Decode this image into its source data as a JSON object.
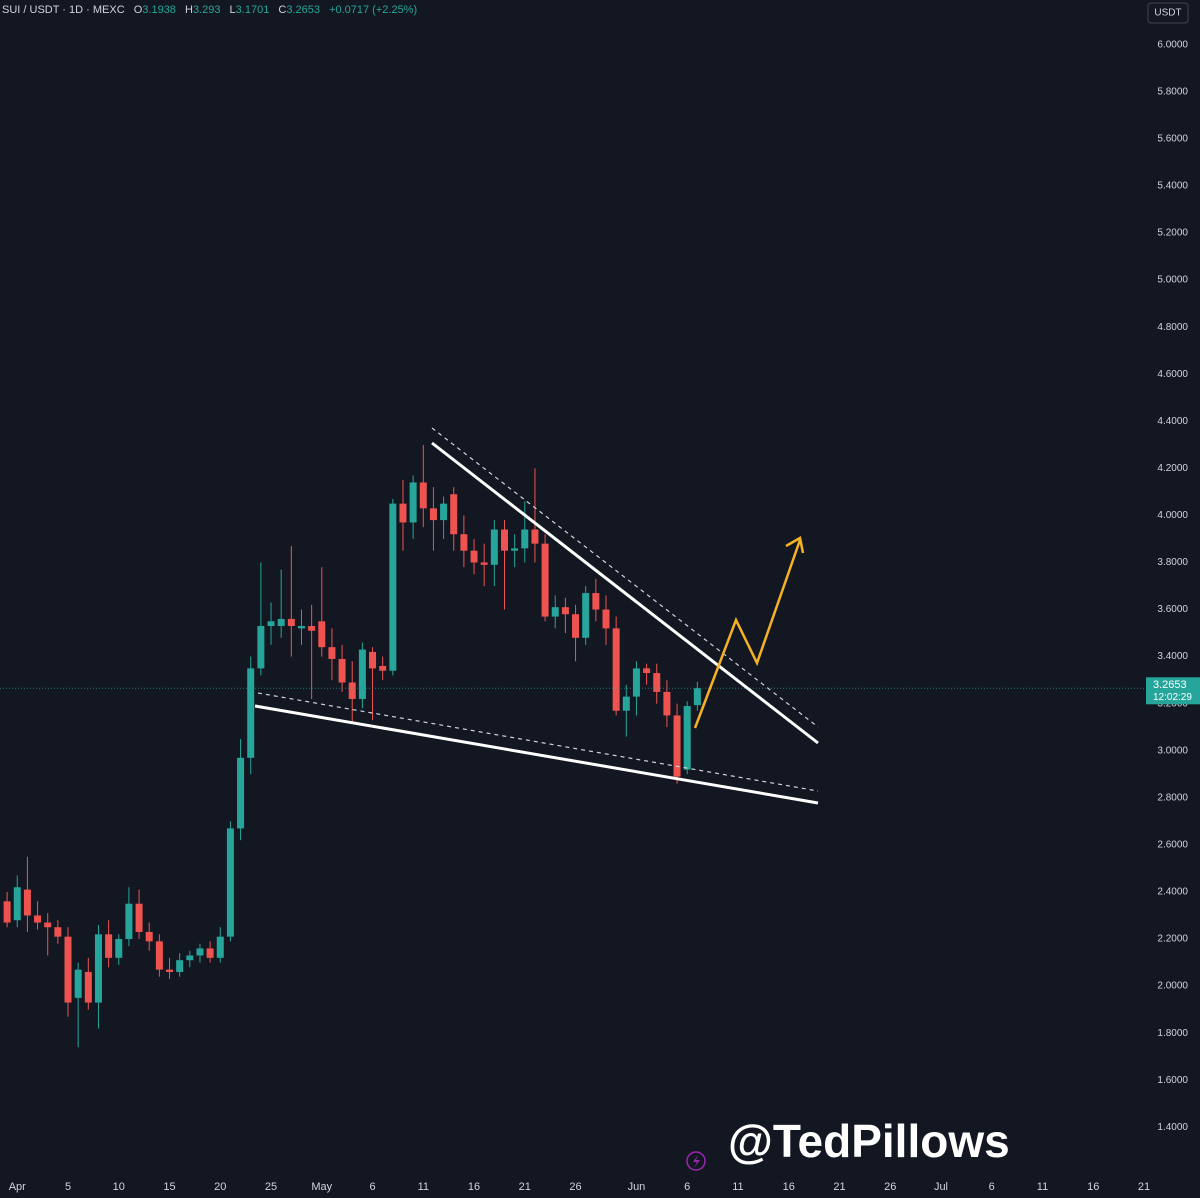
{
  "header": {
    "symbol": "SUI / USDT · 1D · MEXC",
    "o": "O",
    "h": "H",
    "l": "L",
    "c": "C",
    "change": "+0.0717 (+2.25%)",
    "currency": "USDT",
    "countdown": "12:02:29",
    "watermark": "@TedPillows"
  },
  "chart_data": {
    "type": "candlestick",
    "up_color": "#26a69a",
    "down_color": "#ef5350",
    "x": [
      -1,
      0,
      1,
      2,
      3,
      4,
      5,
      6,
      7,
      8,
      9,
      10,
      11,
      12,
      13,
      14,
      15,
      16,
      17,
      18,
      19,
      20,
      21,
      22,
      23,
      24,
      25,
      26,
      27,
      28,
      29,
      30,
      31,
      32,
      33,
      34,
      35,
      36,
      37,
      38,
      39,
      40,
      41,
      42,
      43,
      44,
      45,
      46,
      47,
      48,
      49,
      50,
      51,
      52,
      53,
      54,
      55,
      56,
      57,
      58,
      59,
      60,
      61,
      62,
      63,
      64,
      65,
      66,
      67
    ],
    "open": [
      2.36,
      2.28,
      2.41,
      2.3,
      2.27,
      2.25,
      2.21,
      1.95,
      2.06,
      1.93,
      2.22,
      2.12,
      2.2,
      2.35,
      2.23,
      2.19,
      2.07,
      2.06,
      2.11,
      2.13,
      2.16,
      2.12,
      2.21,
      2.67,
      2.97,
      3.35,
      3.53,
      3.53,
      3.56,
      3.52,
      3.53,
      3.55,
      3.44,
      3.39,
      3.29,
      3.22,
      3.42,
      3.36,
      3.34,
      4.05,
      3.97,
      4.14,
      4.03,
      3.98,
      4.09,
      3.92,
      3.85,
      3.8,
      3.79,
      3.94,
      3.85,
      3.86,
      3.94,
      3.88,
      3.57,
      3.61,
      3.58,
      3.48,
      3.67,
      3.6,
      3.52,
      3.17,
      3.23,
      3.35,
      3.33,
      3.25,
      3.15,
      2.92,
      3.1938
    ],
    "high": [
      2.4,
      2.47,
      2.55,
      2.36,
      2.31,
      2.28,
      2.25,
      2.1,
      2.12,
      2.26,
      2.28,
      2.22,
      2.42,
      2.41,
      2.27,
      2.22,
      2.12,
      2.14,
      2.15,
      2.18,
      2.19,
      2.25,
      2.7,
      3.05,
      3.4,
      3.8,
      3.63,
      3.77,
      3.87,
      3.6,
      3.62,
      3.78,
      3.52,
      3.45,
      3.38,
      3.46,
      3.44,
      3.4,
      4.07,
      4.15,
      4.17,
      4.3,
      4.12,
      4.08,
      4.12,
      4.0,
      3.9,
      3.88,
      3.98,
      3.98,
      3.92,
      4.06,
      4.2,
      3.92,
      3.66,
      3.65,
      3.62,
      3.7,
      3.73,
      3.66,
      3.57,
      3.28,
      3.38,
      3.37,
      3.37,
      3.3,
      3.2,
      3.21,
      3.293
    ],
    "low": [
      2.25,
      2.25,
      2.23,
      2.24,
      2.13,
      2.18,
      1.87,
      1.74,
      1.9,
      1.82,
      2.08,
      2.09,
      2.17,
      2.2,
      2.15,
      2.04,
      2.03,
      2.04,
      2.08,
      2.1,
      2.1,
      2.1,
      2.19,
      2.62,
      2.9,
      3.32,
      3.45,
      3.48,
      3.4,
      3.45,
      3.22,
      3.4,
      3.3,
      3.25,
      3.12,
      3.18,
      3.13,
      3.3,
      3.32,
      3.85,
      3.9,
      3.95,
      3.85,
      3.9,
      3.85,
      3.78,
      3.75,
      3.7,
      3.7,
      3.6,
      3.78,
      3.8,
      3.8,
      3.55,
      3.52,
      3.5,
      3.38,
      3.45,
      3.55,
      3.45,
      3.15,
      3.06,
      3.15,
      3.28,
      3.2,
      3.1,
      2.86,
      2.9,
      3.1701
    ],
    "close": [
      2.27,
      2.42,
      2.3,
      2.27,
      2.25,
      2.21,
      1.93,
      2.07,
      1.93,
      2.22,
      2.12,
      2.2,
      2.35,
      2.23,
      2.19,
      2.07,
      2.06,
      2.11,
      2.13,
      2.16,
      2.12,
      2.21,
      2.67,
      2.97,
      3.35,
      3.53,
      3.55,
      3.56,
      3.53,
      3.53,
      3.51,
      3.44,
      3.39,
      3.29,
      3.22,
      3.43,
      3.35,
      3.34,
      4.05,
      3.97,
      4.14,
      4.03,
      3.98,
      4.05,
      3.92,
      3.85,
      3.8,
      3.79,
      3.94,
      3.85,
      3.86,
      3.94,
      3.88,
      3.57,
      3.61,
      3.58,
      3.48,
      3.67,
      3.6,
      3.52,
      3.17,
      3.23,
      3.35,
      3.33,
      3.25,
      3.15,
      2.89,
      3.19,
      3.2653
    ],
    "xlim": [
      -1.7,
      111.1
    ],
    "ylim": [
      1.21,
      6.19
    ],
    "xticks": [
      {
        "value": 0,
        "label": "Apr"
      },
      5,
      10,
      15,
      20,
      25,
      {
        "value": 30,
        "label": "May"
      },
      {
        "value": 35,
        "label": "6"
      },
      {
        "value": 40,
        "label": "11"
      },
      {
        "value": 45,
        "label": "16"
      },
      {
        "value": 50,
        "label": "21"
      },
      {
        "value": 55,
        "label": "26"
      },
      {
        "value": 61,
        "label": "Jun"
      },
      {
        "value": 66,
        "label": "6"
      },
      {
        "value": 71,
        "label": "11"
      },
      {
        "value": 76,
        "label": "16"
      },
      {
        "value": 81,
        "label": "21"
      },
      {
        "value": 86,
        "label": "26"
      },
      {
        "value": 91,
        "label": "Jul"
      },
      {
        "value": 96,
        "label": "6"
      },
      {
        "value": 101,
        "label": "11"
      },
      {
        "value": 106,
        "label": "16"
      },
      {
        "value": 111,
        "label": "21"
      }
    ],
    "yticks": [
      {
        "value": 1.4,
        "label": "1.4000"
      },
      {
        "value": 1.6,
        "label": "1.6000"
      },
      {
        "value": 1.8,
        "label": "1.8000"
      },
      {
        "value": 2.0,
        "label": "2.0000"
      },
      {
        "value": 2.2,
        "label": "2.2000"
      },
      {
        "value": 2.4,
        "label": "2.4000"
      },
      {
        "value": 2.6,
        "label": "2.6000"
      },
      {
        "value": 2.8,
        "label": "2.8000"
      },
      {
        "value": 3.0,
        "label": "3.0000"
      },
      {
        "value": 3.2,
        "label": "3.2000"
      },
      {
        "value": 3.4,
        "label": "3.4000"
      },
      {
        "value": 3.6,
        "label": "3.6000"
      },
      {
        "value": 3.8,
        "label": "3.8000"
      },
      {
        "value": 4.0,
        "label": "4.0000"
      },
      {
        "value": 4.2,
        "label": "4.2000"
      },
      {
        "value": 4.4,
        "label": "4.4000"
      },
      {
        "value": 4.6,
        "label": "4.6000"
      },
      {
        "value": 4.8,
        "label": "4.8000"
      },
      {
        "value": 5.0,
        "label": "5.0000"
      },
      {
        "value": 5.2,
        "label": "5.2000"
      },
      {
        "value": 5.4,
        "label": "5.4000"
      },
      {
        "value": 5.6,
        "label": "5.6000"
      },
      {
        "value": 5.8,
        "label": "5.8000"
      },
      {
        "value": 6.0,
        "label": "6.0000"
      }
    ]
  }
}
